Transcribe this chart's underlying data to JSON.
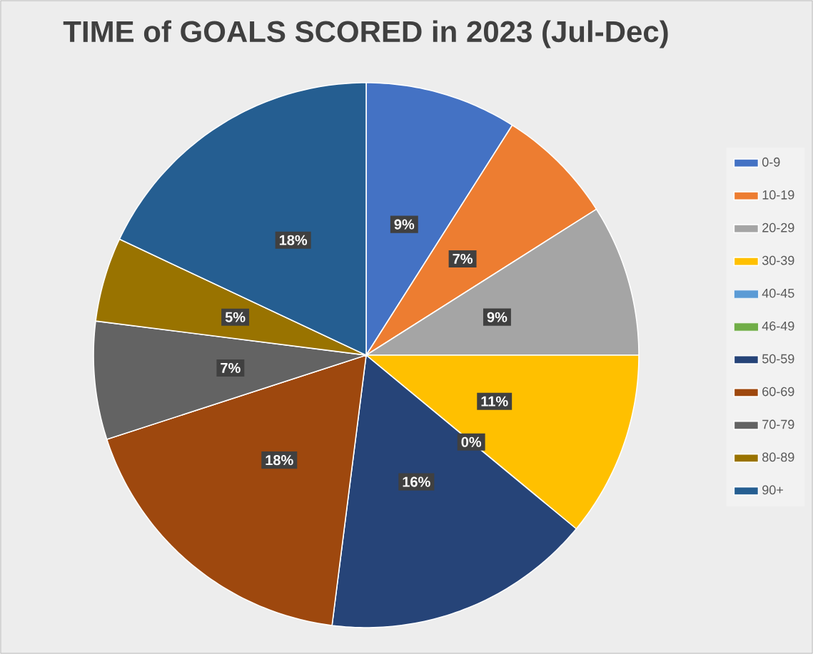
{
  "chart_data": {
    "type": "pie",
    "title": "TIME of GOALS SCORED in 2023 (Jul-Dec)",
    "categories": [
      "0-9",
      "10-19",
      "20-29",
      "30-39",
      "40-45",
      "46-49",
      "50-59",
      "60-69",
      "70-79",
      "80-89",
      "90+"
    ],
    "values": [
      9,
      7,
      9,
      11,
      0,
      0,
      16,
      18,
      7,
      5,
      18
    ],
    "colors": [
      "#4472c4",
      "#ed7d31",
      "#a5a5a5",
      "#ffc000",
      "#5b9bd5",
      "#70ad47",
      "#264478",
      "#9e480e",
      "#636363",
      "#997300",
      "#255e91"
    ],
    "value_labels": [
      "9%",
      "7%",
      "9%",
      "11%",
      "0%",
      null,
      "16%",
      "18%",
      "7%",
      "5%",
      "18%"
    ],
    "legend": "right"
  }
}
